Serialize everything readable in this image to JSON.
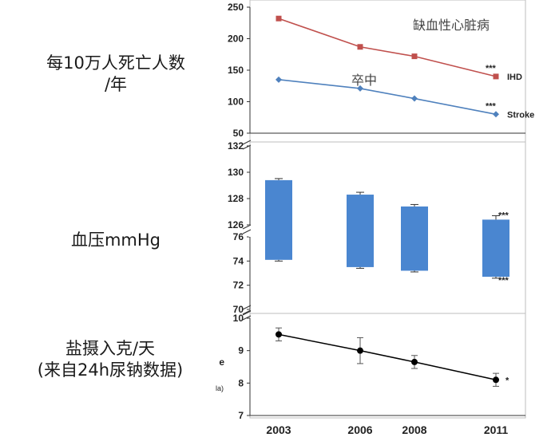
{
  "row_labels": {
    "mortality_line1": "每10万人死亡人数",
    "mortality_line2": "/年",
    "bp": "血压mmHg",
    "salt_line1": "盐摄入克/天",
    "salt_line2": "(来自24h尿钠数据)"
  },
  "clipped_fragments": {
    "a": "e",
    "b": "la)"
  },
  "chart_data": [
    {
      "type": "line",
      "x": [
        2003,
        2006,
        2008,
        2011
      ],
      "ylim": [
        50,
        250
      ],
      "yticks": [
        50,
        100,
        150,
        200,
        250
      ],
      "annotations": [
        "缺血性心脏病",
        "卒中"
      ],
      "series": [
        {
          "name": "IHD",
          "values": [
            232,
            187,
            172,
            140
          ],
          "color": "#c0504d",
          "marker": "square",
          "sig": "***"
        },
        {
          "name": "Stroke",
          "values": [
            135,
            121,
            105,
            80
          ],
          "color": "#4f81bd",
          "marker": "diamond",
          "sig": "***"
        }
      ]
    },
    {
      "type": "bar",
      "x": [
        2003,
        2006,
        2008,
        2011
      ],
      "series": [
        {
          "name": "systolic",
          "values": [
            129.4,
            128.3,
            127.4,
            126.4
          ],
          "err": [
            0.12,
            0.18,
            0.15,
            0.3
          ],
          "sig": [
            "",
            "",
            "",
            "***"
          ]
        },
        {
          "name": "diastolic",
          "values": [
            74.1,
            73.5,
            73.2,
            72.7
          ],
          "err": [
            0.1,
            0.1,
            0.1,
            0.12
          ],
          "sig": [
            "",
            "",
            "",
            "***"
          ]
        }
      ],
      "upper_axis": {
        "ylim": [
          126,
          132
        ],
        "yticks": [
          126,
          128,
          130,
          132
        ]
      },
      "lower_axis": {
        "ylim": [
          70,
          76
        ],
        "yticks": [
          70,
          72,
          74,
          76
        ]
      },
      "color": "#4a86d0",
      "axis_break": true
    },
    {
      "type": "line",
      "x": [
        2003,
        2006,
        2008,
        2011
      ],
      "values": [
        9.5,
        9.0,
        8.65,
        8.1
      ],
      "err": [
        0.2,
        0.4,
        0.2,
        0.2
      ],
      "sig": "*",
      "ylim": [
        7,
        10
      ],
      "yticks": [
        7,
        8,
        9,
        10
      ],
      "xticklabels": [
        "2003",
        "2006",
        "2008",
        "2011"
      ],
      "color": "#000000",
      "marker": "circle"
    }
  ]
}
